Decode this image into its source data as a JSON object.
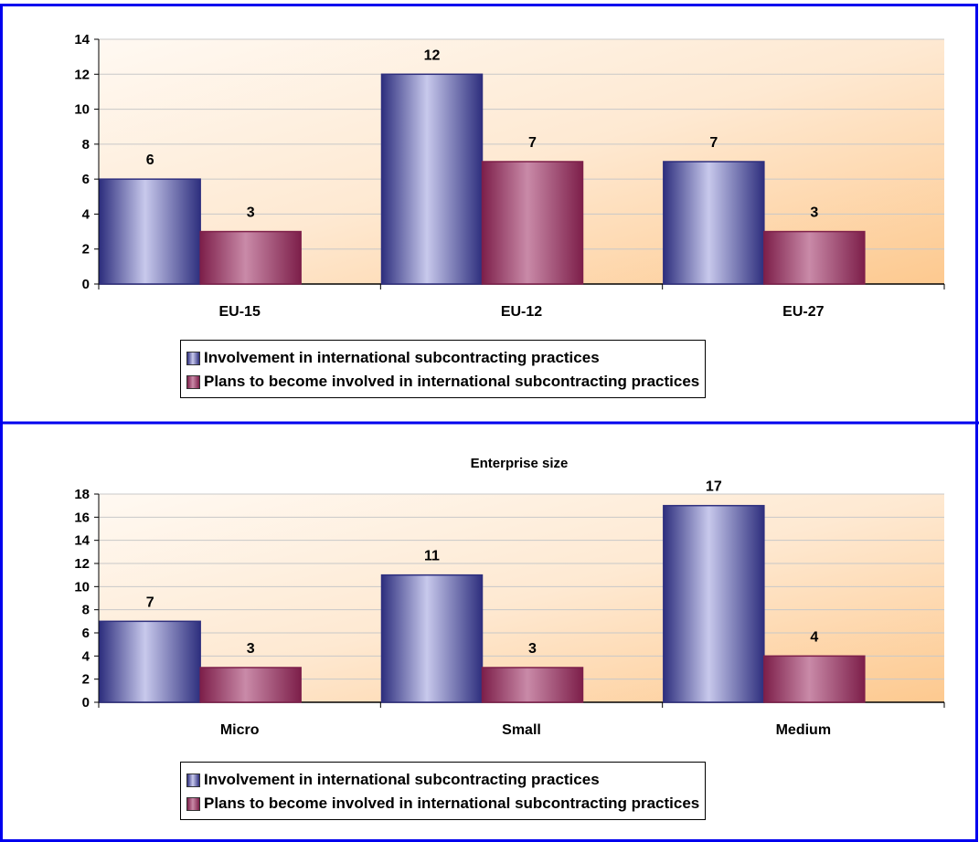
{
  "colors": {
    "series1_dark": "#2e2f7e",
    "series1_light": "#c8c9ec",
    "series2_dark": "#7d1f4a",
    "series2_light": "#c98aa8",
    "frame": "#0000ee",
    "plot_light": "#fff9f2",
    "plot_dark": "#fdc98f"
  },
  "chart_data": [
    {
      "type": "bar",
      "title": "",
      "categories": [
        "EU-15",
        "EU-12",
        "EU-27"
      ],
      "series": [
        {
          "name": "Involvement in international  subcontracting practices",
          "values": [
            6,
            12,
            7
          ]
        },
        {
          "name": "Plans to become involved in international subcontracting practices",
          "values": [
            3,
            7,
            3
          ]
        }
      ],
      "ylim": [
        0,
        14
      ],
      "yticks": [
        0,
        2,
        4,
        6,
        8,
        10,
        12,
        14
      ],
      "grid": true,
      "legend": "bottom"
    },
    {
      "type": "bar",
      "title": "Enterprise size",
      "categories": [
        "Micro",
        "Small",
        "Medium"
      ],
      "series": [
        {
          "name": "Involvement in international  subcontracting practices",
          "values": [
            7,
            11,
            17
          ]
        },
        {
          "name": "Plans to become involved in international subcontracting practices",
          "values": [
            3,
            3,
            4
          ]
        }
      ],
      "ylim": [
        0,
        18
      ],
      "yticks": [
        0,
        2,
        4,
        6,
        8,
        10,
        12,
        14,
        16,
        18
      ],
      "grid": true,
      "legend": "bottom"
    }
  ]
}
